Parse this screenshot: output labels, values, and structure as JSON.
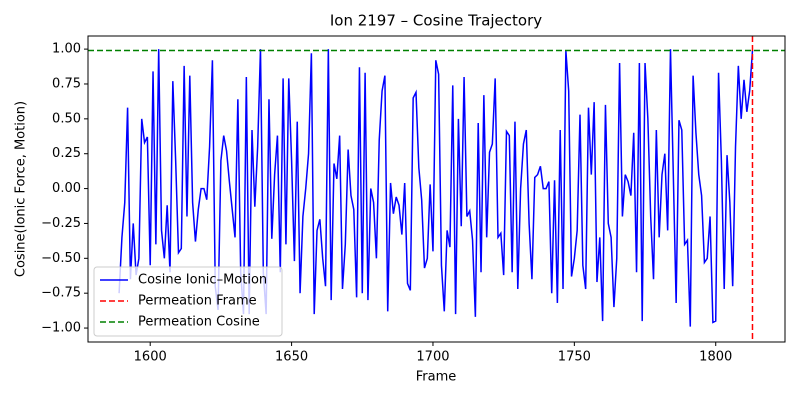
{
  "chart_data": {
    "type": "line",
    "title": "Ion 2197 – Cosine Trajectory",
    "xlabel": "Frame",
    "ylabel": "Cosine(Ionic Force, Motion)",
    "x": [
      1589,
      1590,
      1591,
      1592,
      1593,
      1594,
      1595,
      1596,
      1597,
      1598,
      1599,
      1600,
      1601,
      1602,
      1603,
      1604,
      1605,
      1606,
      1607,
      1608,
      1609,
      1610,
      1611,
      1612,
      1613,
      1614,
      1615,
      1616,
      1617,
      1618,
      1619,
      1620,
      1621,
      1622,
      1623,
      1624,
      1625,
      1626,
      1627,
      1628,
      1629,
      1630,
      1631,
      1632,
      1633,
      1634,
      1635,
      1636,
      1637,
      1638,
      1639,
      1640,
      1641,
      1642,
      1643,
      1644,
      1645,
      1646,
      1647,
      1648,
      1649,
      1650,
      1651,
      1652,
      1653,
      1654,
      1655,
      1656,
      1657,
      1658,
      1659,
      1660,
      1661,
      1662,
      1663,
      1664,
      1665,
      1666,
      1667,
      1668,
      1669,
      1670,
      1671,
      1672,
      1673,
      1674,
      1675,
      1676,
      1677,
      1678,
      1679,
      1680,
      1681,
      1682,
      1683,
      1684,
      1685,
      1686,
      1687,
      1688,
      1689,
      1690,
      1691,
      1692,
      1693,
      1694,
      1695,
      1696,
      1697,
      1698,
      1699,
      1700,
      1701,
      1702,
      1703,
      1704,
      1705,
      1706,
      1707,
      1708,
      1709,
      1710,
      1711,
      1712,
      1713,
      1714,
      1715,
      1716,
      1717,
      1718,
      1719,
      1720,
      1721,
      1722,
      1723,
      1724,
      1725,
      1726,
      1727,
      1728,
      1729,
      1730,
      1731,
      1732,
      1733,
      1734,
      1735,
      1736,
      1737,
      1738,
      1739,
      1740,
      1741,
      1742,
      1743,
      1744,
      1745,
      1746,
      1747,
      1748,
      1749,
      1750,
      1751,
      1752,
      1753,
      1754,
      1755,
      1756,
      1757,
      1758,
      1759,
      1760,
      1761,
      1762,
      1763,
      1764,
      1765,
      1766,
      1767,
      1768,
      1769,
      1770,
      1771,
      1772,
      1773,
      1774,
      1775,
      1776,
      1777,
      1778,
      1779,
      1780,
      1781,
      1782,
      1783,
      1784,
      1785,
      1786,
      1787,
      1788,
      1789,
      1790,
      1791,
      1792,
      1793,
      1794,
      1795,
      1796,
      1797,
      1798,
      1799,
      1800,
      1801,
      1802,
      1803,
      1804,
      1805,
      1806,
      1807,
      1808,
      1809,
      1810,
      1811,
      1812,
      1813
    ],
    "series": [
      {
        "name": "Cosine Ionic–Motion",
        "color": "#0000ff",
        "values": [
          -0.75,
          -0.35,
          -0.1,
          0.58,
          -0.65,
          -0.25,
          -0.62,
          -0.5,
          0.5,
          0.33,
          0.37,
          -0.55,
          0.84,
          -0.4,
          1.0,
          -0.3,
          -0.5,
          -0.12,
          -0.6,
          0.77,
          0.2,
          -0.46,
          -0.43,
          0.88,
          -0.2,
          0.81,
          -0.1,
          -0.38,
          -0.15,
          0.0,
          0.0,
          -0.08,
          0.3,
          0.92,
          -0.7,
          -0.87,
          0.2,
          0.38,
          0.27,
          0.05,
          -0.15,
          -0.35,
          0.64,
          -0.6,
          -0.9,
          0.8,
          -0.9,
          0.42,
          -0.13,
          0.3,
          1.0,
          -0.6,
          -0.9,
          0.64,
          -0.36,
          0.1,
          0.38,
          -0.6,
          0.79,
          -0.4,
          0.79,
          0.2,
          -0.52,
          0.48,
          -0.75,
          -0.2,
          0.0,
          0.25,
          0.97,
          -0.9,
          -0.3,
          -0.22,
          -0.5,
          -0.7,
          1.0,
          -0.8,
          0.18,
          0.07,
          0.38,
          -0.72,
          -0.4,
          0.28,
          -0.05,
          -0.15,
          -0.78,
          0.87,
          -0.75,
          0.83,
          -0.8,
          0.0,
          -0.1,
          -0.5,
          0.35,
          0.7,
          0.81,
          -0.88,
          0.04,
          -0.18,
          -0.06,
          -0.12,
          -0.33,
          0.04,
          -0.68,
          -0.73,
          0.65,
          0.69,
          0.15,
          -0.08,
          -0.57,
          -0.5,
          0.03,
          -0.45,
          0.92,
          0.82,
          -0.55,
          -0.88,
          -0.3,
          -0.42,
          0.74,
          -0.9,
          0.5,
          -0.27,
          0.8,
          -0.2,
          -0.16,
          -0.37,
          -0.92,
          0.47,
          -0.6,
          0.67,
          -0.35,
          0.26,
          0.32,
          0.79,
          -0.35,
          -0.32,
          -0.62,
          0.41,
          0.38,
          -0.6,
          0.48,
          -0.72,
          0.0,
          0.32,
          0.42,
          -0.25,
          -0.65,
          0.08,
          0.1,
          0.16,
          0.0,
          0.0,
          0.05,
          -0.75,
          0.06,
          -0.82,
          0.42,
          -0.72,
          0.99,
          0.7,
          -0.63,
          -0.5,
          -0.3,
          0.53,
          -0.55,
          -0.72,
          0.58,
          0.1,
          0.62,
          -0.67,
          -0.35,
          -0.95,
          0.6,
          -0.25,
          -0.35,
          -0.85,
          -0.5,
          0.9,
          -0.2,
          0.1,
          0.05,
          -0.05,
          0.4,
          -0.6,
          0.9,
          -0.95,
          0.9,
          0.5,
          -0.2,
          -0.65,
          0.42,
          -0.35,
          0.1,
          0.25,
          -0.3,
          1.0,
          0.1,
          -0.82,
          0.49,
          0.42,
          -0.4,
          -0.37,
          -0.99,
          0.81,
          0.4,
          0.1,
          -0.05,
          -0.53,
          -0.5,
          -0.2,
          -0.96,
          -0.95,
          0.83,
          0.2,
          -0.72,
          0.24,
          -0.1,
          -0.7,
          0.3,
          0.88,
          0.5,
          0.78,
          0.55,
          0.7,
          0.99
        ]
      }
    ],
    "vlines": [
      {
        "name": "Permeation Frame",
        "color": "#ff0000",
        "linestyle": "dashed",
        "x": 1813
      }
    ],
    "hlines": [
      {
        "name": "Permeation Cosine",
        "color": "#008000",
        "linestyle": "dashed",
        "y": 0.99
      }
    ],
    "xlim": [
      1578,
      1824.5
    ],
    "ylim": [
      -1.1,
      1.094
    ],
    "xticks": [
      1600,
      1650,
      1700,
      1750,
      1800
    ],
    "yticks": [
      {
        "value": -1,
        "label": "−1.00"
      },
      {
        "value": -0.75,
        "label": "−0.75"
      },
      {
        "value": -0.5,
        "label": "−0.50"
      },
      {
        "value": -0.25,
        "label": "−0.25"
      },
      {
        "value": 0,
        "label": "0.00"
      },
      {
        "value": 0.25,
        "label": "0.25"
      },
      {
        "value": 0.5,
        "label": "0.50"
      },
      {
        "value": 0.75,
        "label": "0.75"
      },
      {
        "value": 1,
        "label": "1.00"
      }
    ],
    "legend": "lower left"
  }
}
